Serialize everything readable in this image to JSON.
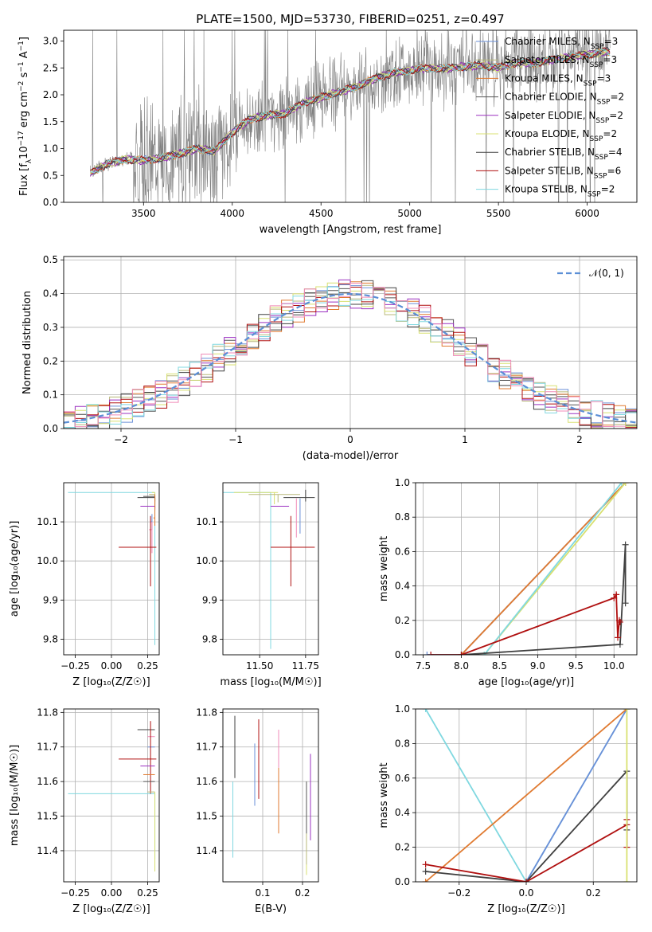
{
  "figure": {
    "title": "PLATE=1500, MJD=53730, FIBERID=0251, z=0.497"
  },
  "colors": {
    "chab_miles": "#6a8fd8",
    "salp_miles": "#b8b87a",
    "krou_miles": "#e07a30",
    "chab_elodie": "#555555",
    "salp_elodie": "#9b30c0",
    "krou_elodie": "#d8e070",
    "chab_stelib": "#404040",
    "salp_stelib": "#b01010",
    "krou_stelib": "#80d8e0",
    "pink": "#f08bb8",
    "data": "#808080",
    "normal": "#5b8fd6"
  },
  "chart_data": [
    {
      "id": "spectrum",
      "type": "line",
      "xlabel": "wavelength [Angstrom, rest frame]",
      "ylabel_parts": [
        "Flux [f",
        "λ",
        "10",
        "−17",
        " erg cm",
        "−2",
        " s",
        "−1",
        " A",
        "−1",
        "]"
      ],
      "xlim": [
        3050,
        6280
      ],
      "ylim": [
        0,
        3.2
      ],
      "xticks": [
        3500,
        4000,
        4500,
        5000,
        5500,
        6000
      ],
      "yticks": [
        "0.0",
        "0.5",
        "1.0",
        "1.5",
        "2.0",
        "2.5",
        "3.0"
      ],
      "legend": [
        {
          "pre": "Chabrier MILES, N",
          "sub": "SSP",
          "post": "=3",
          "color": "chab_miles"
        },
        {
          "pre": "Salpeter MILES, N",
          "sub": "SSP",
          "post": "=3",
          "color": "salp_miles"
        },
        {
          "pre": "Kroupa MILES, N",
          "sub": "SSP",
          "post": "=3",
          "color": "krou_miles"
        },
        {
          "pre": "Chabrier ELODIE, N",
          "sub": "SSP",
          "post": "=2",
          "color": "chab_elodie"
        },
        {
          "pre": "Salpeter ELODIE, N",
          "sub": "SSP",
          "post": "=2",
          "color": "salp_elodie"
        },
        {
          "pre": "Kroupa ELODIE, N",
          "sub": "SSP",
          "post": "=2",
          "color": "krou_elodie"
        },
        {
          "pre": "Chabrier STELIB, N",
          "sub": "SSP",
          "post": "=4",
          "color": "chab_stelib"
        },
        {
          "pre": "Salpeter STELIB, N",
          "sub": "SSP",
          "post": "=6",
          "color": "salp_stelib"
        },
        {
          "pre": "Kroupa STELIB, N",
          "sub": "SSP",
          "post": "=2",
          "color": "krou_stelib"
        }
      ],
      "model_continuum": [
        [
          3200,
          0.55
        ],
        [
          3300,
          0.72
        ],
        [
          3400,
          0.8
        ],
        [
          3500,
          0.78
        ],
        [
          3600,
          0.82
        ],
        [
          3700,
          0.9
        ],
        [
          3800,
          1.0
        ],
        [
          3900,
          0.95
        ],
        [
          4000,
          1.3
        ],
        [
          4100,
          1.55
        ],
        [
          4200,
          1.62
        ],
        [
          4300,
          1.65
        ],
        [
          4400,
          1.85
        ],
        [
          4500,
          1.95
        ],
        [
          4600,
          2.05
        ],
        [
          4700,
          2.15
        ],
        [
          4800,
          2.3
        ],
        [
          4900,
          2.4
        ],
        [
          5000,
          2.45
        ],
        [
          5100,
          2.5
        ],
        [
          5200,
          2.48
        ],
        [
          5300,
          2.52
        ],
        [
          5400,
          2.55
        ],
        [
          5500,
          2.5
        ],
        [
          5600,
          2.6
        ],
        [
          5700,
          2.58
        ],
        [
          5800,
          2.65
        ],
        [
          5900,
          2.7
        ],
        [
          6000,
          2.75
        ],
        [
          6100,
          2.8
        ]
      ]
    },
    {
      "id": "residuals",
      "type": "histogram",
      "xlabel": "(data-model)/error",
      "ylabel": "Normed distribution",
      "xlim": [
        -2.5,
        2.5
      ],
      "ylim": [
        0,
        0.51
      ],
      "xticks": [
        -2,
        -1,
        0,
        1,
        2
      ],
      "yticks": [
        "0.0",
        "0.1",
        "0.2",
        "0.3",
        "0.4",
        "0.5"
      ],
      "legend": [
        {
          "label": "𝒩(0, 1)",
          "color": "normal"
        }
      ],
      "bin_width": 0.1,
      "series_colors": [
        "chab_miles",
        "salp_miles",
        "krou_miles",
        "chab_elodie",
        "salp_elodie",
        "krou_elodie",
        "chab_stelib",
        "salp_stelib",
        "krou_stelib",
        "pink"
      ]
    },
    {
      "id": "age_vs_Z",
      "type": "errorbar",
      "xlabel": "Z [log₁₀(Z/Z☉)]",
      "ylabel": "age  [log₁₀(age/yr)]",
      "xlim": [
        -0.33,
        0.33
      ],
      "ylim": [
        9.76,
        10.2
      ],
      "xticks": [
        -0.25,
        0.0,
        0.25
      ],
      "xtick_labels": [
        "−0.25",
        "0.00",
        "0.25"
      ],
      "yticks": [
        9.8,
        9.9,
        10.0,
        10.1
      ],
      "ytick_labels": [
        "9.8",
        "9.9",
        "10.0",
        "10.1"
      ],
      "points": [
        {
          "x": 0.3,
          "xe": [
            0.6,
            0
          ],
          "y": 10.175,
          "ye": [
            0.39,
            0.0
          ],
          "c": "krou_stelib"
        },
        {
          "x": 0.3,
          "xe": [
            0.02,
            0
          ],
          "y": 10.175,
          "ye": [
            0.04,
            0
          ],
          "c": "krou_elodie"
        },
        {
          "x": 0.3,
          "xe": [
            0.04,
            0
          ],
          "y": 10.17,
          "ye": [
            0.04,
            0
          ],
          "c": "salp_miles"
        },
        {
          "x": 0.3,
          "xe": [
            0.08,
            0
          ],
          "y": 10.165,
          "ye": [
            0.03,
            0
          ],
          "c": "chab_elodie"
        },
        {
          "x": 0.3,
          "xe": [
            0.12,
            0
          ],
          "y": 10.162,
          "ye": [
            0.01,
            0
          ],
          "c": "chab_stelib"
        },
        {
          "x": 0.3,
          "xe": [
            0.1,
            0
          ],
          "y": 10.14,
          "ye": [
            0.01,
            0
          ],
          "c": "salp_elodie"
        },
        {
          "x": 0.3,
          "xe": [
            0.01,
            0
          ],
          "y": 10.11,
          "ye": [
            0.02,
            0.06
          ],
          "c": "krou_miles"
        },
        {
          "x": 0.28,
          "xe": [
            0.01,
            0.0
          ],
          "y": 10.1,
          "ye": [
            0.02,
            0.02
          ],
          "c": "chab_miles"
        },
        {
          "x": 0.28,
          "xe": [
            0.02,
            0.0
          ],
          "y": 10.08,
          "ye": [
            0.06,
            0.02
          ],
          "c": "pink"
        },
        {
          "x": 0.27,
          "xe": [
            0.22,
            0.04
          ],
          "y": 10.035,
          "ye": [
            0.1,
            0.08
          ],
          "c": "salp_stelib"
        }
      ]
    },
    {
      "id": "age_vs_mass",
      "type": "errorbar",
      "xlabel": "mass [log₁₀(M/M☉)]",
      "ylabel": "",
      "xlim": [
        11.3,
        11.82
      ],
      "ylim": [
        9.76,
        10.2
      ],
      "xticks": [
        11.5,
        11.75
      ],
      "xtick_labels": [
        "11.50",
        "11.75"
      ],
      "yticks": [
        9.8,
        9.9,
        10.0,
        10.1
      ],
      "ytick_labels": [
        "9.8",
        "9.9",
        "10.0",
        "10.1"
      ],
      "points": [
        {
          "x": 11.56,
          "xe": [
            0.26,
            0.0
          ],
          "y": 10.175,
          "ye": [
            0.4,
            0
          ],
          "c": "krou_stelib"
        },
        {
          "x": 11.58,
          "xe": [
            0.22,
            0.02
          ],
          "y": 10.175,
          "ye": [
            0.03,
            0
          ],
          "c": "krou_elodie"
        },
        {
          "x": 11.6,
          "xe": [
            0.16,
            0.12
          ],
          "y": 10.17,
          "ye": [
            0.02,
            0
          ],
          "c": "salp_miles"
        },
        {
          "x": 11.75,
          "xe": [
            0.12,
            0.05
          ],
          "y": 10.162,
          "ye": [
            0.01,
            0.02
          ],
          "c": "chab_stelib"
        },
        {
          "x": 11.66,
          "xe": [
            0.1,
            0.0
          ],
          "y": 10.14,
          "ye": [
            0.0,
            0.0
          ],
          "c": "salp_elodie"
        },
        {
          "x": 11.72,
          "xe": [
            0.0,
            0.0
          ],
          "y": 10.11,
          "ye": [
            0.04,
            0.05
          ],
          "c": "chab_miles"
        },
        {
          "x": 11.7,
          "xe": [
            0.0,
            0.0
          ],
          "y": 10.1,
          "ye": [
            0.04,
            0.06
          ],
          "c": "pink"
        },
        {
          "x": 11.67,
          "xe": [
            0.11,
            0.13
          ],
          "y": 10.035,
          "ye": [
            0.1,
            0.08
          ],
          "c": "salp_stelib"
        }
      ]
    },
    {
      "id": "weight_vs_age",
      "type": "line",
      "xlabel": "age  [log₁₀(age/yr)]",
      "ylabel": "mass weight",
      "xlim": [
        7.4,
        10.3
      ],
      "ylim": [
        0,
        1.0
      ],
      "xticks": [
        7.5,
        8.0,
        8.5,
        9.0,
        9.5,
        10.0
      ],
      "xtick_labels": [
        "7.5",
        "8.0",
        "8.5",
        "9.0",
        "9.5",
        "10.0"
      ],
      "yticks": [
        0,
        0.2,
        0.4,
        0.6,
        0.8,
        1.0
      ],
      "ytick_labels": [
        "0.0",
        "0.2",
        "0.4",
        "0.6",
        "0.8",
        "1.0"
      ],
      "series": [
        {
          "c": "chab_miles",
          "pts": [
            [
              7.55,
              0
            ],
            [
              8.0,
              0
            ],
            [
              10.15,
              1.0
            ]
          ]
        },
        {
          "c": "krou_miles",
          "pts": [
            [
              8.0,
              0
            ],
            [
              10.15,
              1.0
            ]
          ]
        },
        {
          "c": "krou_elodie",
          "pts": [
            [
              8.3,
              0
            ],
            [
              10.15,
              1.0
            ]
          ]
        },
        {
          "c": "krou_stelib",
          "pts": [
            [
              8.3,
              0
            ],
            [
              10.1,
              1.0
            ]
          ]
        },
        {
          "c": "chab_stelib",
          "pts": [
            [
              8.0,
              0
            ],
            [
              10.08,
              0.06
            ],
            [
              10.15,
              0.64
            ],
            [
              10.15,
              0.3
            ]
          ]
        },
        {
          "c": "salp_stelib",
          "pts": [
            [
              7.6,
              0
            ],
            [
              8.0,
              0
            ],
            [
              10.0,
              0.33
            ],
            [
              10.03,
              0.35
            ],
            [
              10.05,
              0.1
            ],
            [
              10.07,
              0.2
            ],
            [
              10.08,
              0.19
            ]
          ]
        }
      ]
    },
    {
      "id": "mass_vs_Z",
      "type": "errorbar",
      "xlabel": "Z [log₁₀(Z/Z☉)]",
      "ylabel": "mass [log₁₀(M/M☉)]",
      "xlim": [
        -0.33,
        0.33
      ],
      "ylim": [
        11.31,
        11.81
      ],
      "xticks": [
        -0.25,
        0.0,
        0.25
      ],
      "xtick_labels": [
        "−0.25",
        "0.00",
        "0.25"
      ],
      "yticks": [
        11.4,
        11.5,
        11.6,
        11.7,
        11.8
      ],
      "ytick_labels": [
        "11.4",
        "11.5",
        "11.6",
        "11.7",
        "11.8"
      ],
      "points": [
        {
          "x": 0.3,
          "xe": [
            0.6,
            0
          ],
          "y": 11.565,
          "ye": [
            0.19,
            0
          ],
          "c": "krou_stelib"
        },
        {
          "x": 0.3,
          "xe": [
            0.12,
            0
          ],
          "y": 11.75,
          "ye": [
            0.0,
            0.0
          ],
          "c": "chab_stelib"
        },
        {
          "x": 0.3,
          "xe": [
            0.05,
            0
          ],
          "y": 11.73,
          "ye": [
            0.0,
            0.0
          ],
          "c": "pink"
        },
        {
          "x": 0.3,
          "xe": [
            0.05,
            0
          ],
          "y": 11.7,
          "ye": [
            0.0,
            0.0
          ],
          "c": "chab_miles"
        },
        {
          "x": 0.27,
          "xe": [
            0.22,
            0.04
          ],
          "y": 11.665,
          "ye": [
            0.1,
            0.11
          ],
          "c": "salp_stelib"
        },
        {
          "x": 0.3,
          "xe": [
            0.1,
            0
          ],
          "y": 11.645,
          "ye": [
            0.0,
            0.0
          ],
          "c": "salp_elodie"
        },
        {
          "x": 0.3,
          "xe": [
            0.08,
            0
          ],
          "y": 11.62,
          "ye": [
            0.0,
            0.0
          ],
          "c": "krou_miles"
        },
        {
          "x": 0.3,
          "xe": [
            0.08,
            0
          ],
          "y": 11.6,
          "ye": [
            0.0,
            0.0
          ],
          "c": "chab_elodie"
        },
        {
          "x": 0.3,
          "xe": [
            0.05,
            0
          ],
          "y": 11.57,
          "ye": [
            0.0,
            0.0
          ],
          "c": "salp_miles"
        },
        {
          "x": 0.3,
          "xe": [
            0.0,
            0
          ],
          "y": 11.57,
          "ye": [
            0.23,
            0.0
          ],
          "c": "krou_elodie"
        }
      ]
    },
    {
      "id": "mass_vs_EBV",
      "type": "errorbar",
      "xlabel": "E(B-V)",
      "ylabel": "",
      "xlim": [
        0.0,
        0.24
      ],
      "ylim": [
        11.31,
        11.81
      ],
      "xticks": [
        0.1,
        0.2
      ],
      "xtick_labels": [
        "0.1",
        "0.2"
      ],
      "yticks": [
        11.4,
        11.5,
        11.6,
        11.7,
        11.8
      ],
      "ytick_labels": [
        "11.4",
        "11.5",
        "11.6",
        "11.7",
        "11.8"
      ],
      "points": [
        {
          "x": 0.03,
          "y": 11.7,
          "ye": [
            0.09,
            0.09
          ],
          "c": "chab_stelib"
        },
        {
          "x": 0.025,
          "y": 11.49,
          "ye": [
            0.11,
            0.11
          ],
          "c": "krou_stelib"
        },
        {
          "x": 0.08,
          "y": 11.62,
          "ye": [
            0.09,
            0.09
          ],
          "c": "chab_miles"
        },
        {
          "x": 0.09,
          "y": 11.65,
          "ye": [
            0.1,
            0.13
          ],
          "c": "salp_stelib"
        },
        {
          "x": 0.14,
          "y": 11.55,
          "ye": [
            0.1,
            0.09
          ],
          "c": "krou_miles"
        },
        {
          "x": 0.14,
          "y": 11.7,
          "ye": [
            0.06,
            0.05
          ],
          "c": "pink"
        },
        {
          "x": 0.21,
          "y": 11.45,
          "ye": [
            0.12,
            0.14
          ],
          "c": "krou_elodie"
        },
        {
          "x": 0.21,
          "y": 11.5,
          "ye": [
            0.14,
            0.1
          ],
          "c": "salp_miles"
        },
        {
          "x": 0.21,
          "y": 11.55,
          "ye": [
            0.1,
            0.05
          ],
          "c": "chab_elodie"
        },
        {
          "x": 0.22,
          "y": 11.55,
          "ye": [
            0.12,
            0.13
          ],
          "c": "salp_elodie"
        }
      ]
    },
    {
      "id": "weight_vs_Z",
      "type": "line",
      "xlabel": "Z [log₁₀(Z/Z☉)]",
      "ylabel": "mass weight",
      "xlim": [
        -0.33,
        0.33
      ],
      "ylim": [
        0,
        1.0
      ],
      "xticks": [
        -0.2,
        0.0,
        0.2
      ],
      "xtick_labels": [
        "−0.2",
        "0.0",
        "0.2"
      ],
      "yticks": [
        0,
        0.2,
        0.4,
        0.6,
        0.8,
        1.0
      ],
      "ytick_labels": [
        "0.0",
        "0.2",
        "0.4",
        "0.6",
        "0.8",
        "1.0"
      ],
      "series": [
        {
          "c": "krou_stelib",
          "pts": [
            [
              -0.3,
              1.0
            ],
            [
              0,
              0
            ],
            [
              0.3,
              1.0
            ]
          ]
        },
        {
          "c": "chab_miles",
          "pts": [
            [
              0,
              0
            ],
            [
              0.3,
              1.0
            ]
          ]
        },
        {
          "c": "krou_miles",
          "pts": [
            [
              -0.3,
              0
            ],
            [
              0.3,
              1.0
            ]
          ]
        },
        {
          "c": "chab_stelib",
          "pts": [
            [
              -0.3,
              0.06
            ],
            [
              0,
              0
            ],
            [
              0.3,
              0.64
            ],
            [
              0.3,
              0.3
            ]
          ]
        },
        {
          "c": "salp_stelib",
          "pts": [
            [
              -0.3,
              0.1
            ],
            [
              0,
              0
            ],
            [
              0.3,
              0.33
            ],
            [
              0.3,
              0.36
            ],
            [
              0.3,
              0.2
            ]
          ]
        },
        {
          "c": "krou_elodie",
          "pts": [
            [
              0.3,
              0
            ],
            [
              0.3,
              1.0
            ]
          ]
        }
      ]
    }
  ]
}
